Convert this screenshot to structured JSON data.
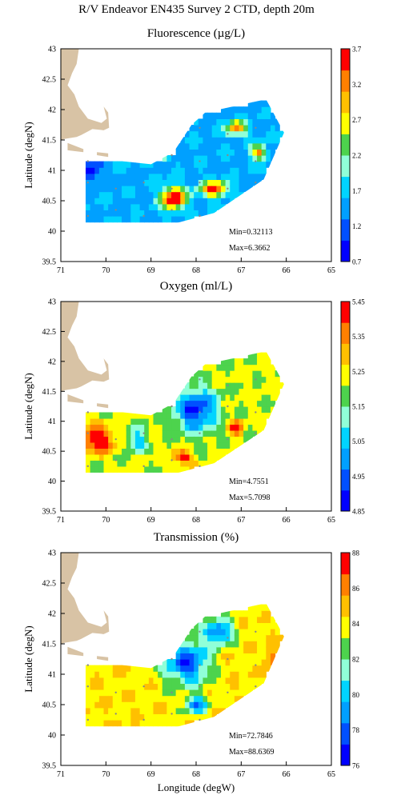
{
  "title": "R/V Endeavor EN435 Survey 2 CTD, depth 20m",
  "xlabel": "Longitude (degW)",
  "ylabel": "Latitude (degN)",
  "colors": {
    "land": "#d8c3a5",
    "colormap": [
      "#0000ff",
      "#0050ff",
      "#00a0ff",
      "#00d4ff",
      "#90ffd8",
      "#4dd34d",
      "#ffff00",
      "#ffc000",
      "#ff8000",
      "#ff0000"
    ]
  },
  "chart_data": [
    {
      "type": "heatmap",
      "title": "Fluorescence (µg/L)",
      "xlim": [
        71,
        65
      ],
      "ylim": [
        39.5,
        43
      ],
      "x_ticks": [
        "71",
        "70",
        "69",
        "68",
        "67",
        "66",
        "65"
      ],
      "y_ticks": [
        "43",
        "42.5",
        "42",
        "41.5",
        "41",
        "40.5",
        "40",
        "39.5"
      ],
      "colorbar": {
        "min": 0.7,
        "max": 3.7,
        "ticks": [
          "3.7",
          "3.2",
          "2.7",
          "2.2",
          "1.7",
          "1.2",
          "0.7"
        ]
      },
      "stats": {
        "min": "Min=0.32113",
        "max": "Max=6.3662"
      }
    },
    {
      "type": "heatmap",
      "title": "Oxygen (ml/L)",
      "xlim": [
        71,
        65
      ],
      "ylim": [
        39.5,
        43
      ],
      "x_ticks": [
        "71",
        "70",
        "69",
        "68",
        "67",
        "66",
        "65"
      ],
      "y_ticks": [
        "43",
        "42.5",
        "42",
        "41.5",
        "41",
        "40.5",
        "40",
        "39.5"
      ],
      "colorbar": {
        "min": 4.85,
        "max": 5.45,
        "ticks": [
          "5.45",
          "5.35",
          "5.25",
          "5.15",
          "5.05",
          "4.95",
          "4.85"
        ]
      },
      "stats": {
        "min": "Min=4.7551",
        "max": "Max=5.7098"
      }
    },
    {
      "type": "heatmap",
      "title": "Transmission (%)",
      "xlim": [
        71,
        65
      ],
      "ylim": [
        39.5,
        43
      ],
      "x_ticks": [
        "71",
        "70",
        "69",
        "68",
        "67",
        "66",
        "65"
      ],
      "y_ticks": [
        "43",
        "42.5",
        "42",
        "41.5",
        "41",
        "40.5",
        "40",
        "39.5"
      ],
      "colorbar": {
        "min": 76,
        "max": 88,
        "ticks": [
          "88",
          "86",
          "84",
          "82",
          "80",
          "78",
          "76"
        ]
      },
      "stats": {
        "min": "Min=72.7846",
        "max": "Max=88.6369"
      }
    }
  ]
}
